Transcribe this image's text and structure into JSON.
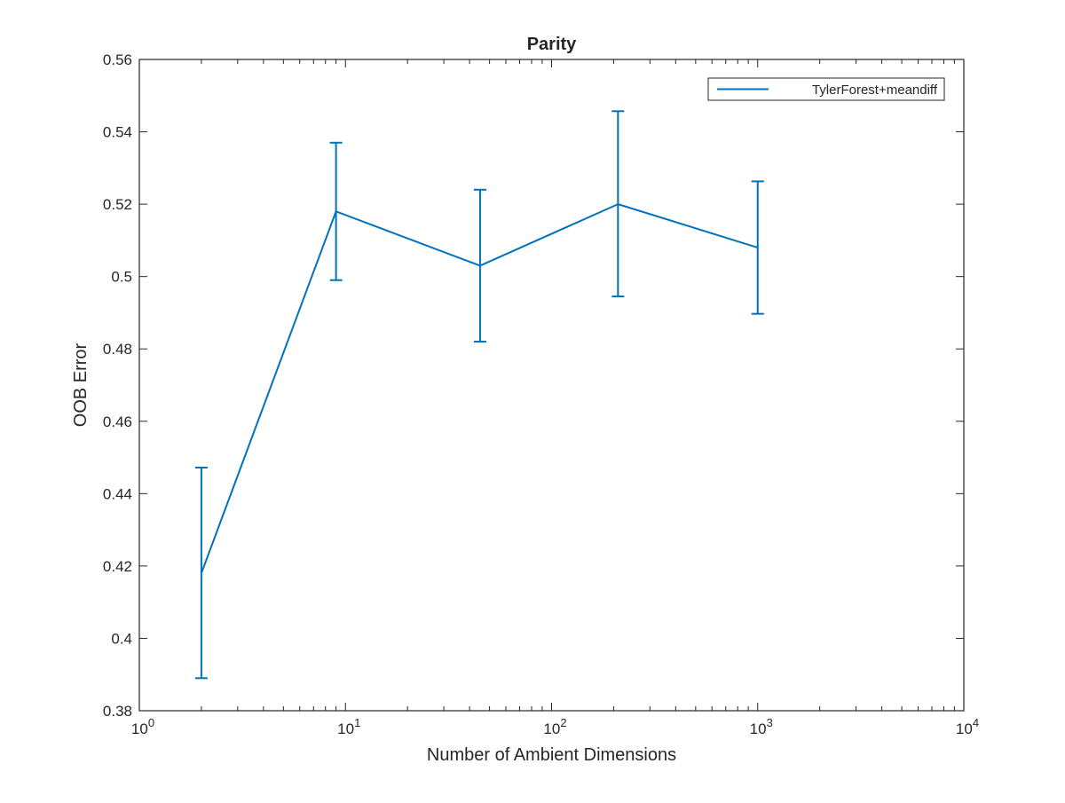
{
  "chart_data": {
    "type": "line",
    "title": "Parity",
    "xlabel": "Number of Ambient Dimensions",
    "ylabel": "OOB Error",
    "xscale": "log",
    "xlim": [
      1,
      10000
    ],
    "ylim": [
      0.38,
      0.56
    ],
    "x_ticks": [
      1,
      10,
      100,
      1000,
      10000
    ],
    "x_tick_labels": [
      {
        "base": "10",
        "exp": "0"
      },
      {
        "base": "10",
        "exp": "1"
      },
      {
        "base": "10",
        "exp": "2"
      },
      {
        "base": "10",
        "exp": "3"
      },
      {
        "base": "10",
        "exp": "4"
      }
    ],
    "y_ticks": [
      0.38,
      0.4,
      0.42,
      0.44,
      0.46,
      0.48,
      0.5,
      0.52,
      0.54,
      0.56
    ],
    "y_tick_labels": [
      "0.38",
      "0.4",
      "0.42",
      "0.44",
      "0.46",
      "0.48",
      "0.5",
      "0.52",
      "0.54",
      "0.56"
    ],
    "grid": false,
    "legend_position": "top-right",
    "series": [
      {
        "name": "TylerForest+meandiff",
        "color": "#0072bd",
        "x": [
          2,
          9,
          45,
          210,
          1000
        ],
        "y": [
          0.418,
          0.518,
          0.503,
          0.52,
          0.508
        ],
        "err_low": [
          0.389,
          0.499,
          0.482,
          0.4945,
          0.4897
        ],
        "err_high": [
          0.4472,
          0.537,
          0.524,
          0.5457,
          0.5263
        ]
      }
    ]
  }
}
